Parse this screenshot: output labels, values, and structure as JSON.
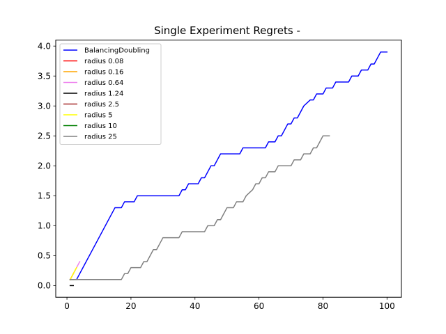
{
  "chart_data": {
    "type": "line",
    "title": "Single Experiment Regrets -",
    "xlabel": "",
    "ylabel": "",
    "xlim": [
      -3.5,
      104.5
    ],
    "ylim": [
      -0.195,
      4.1
    ],
    "xticks": [
      0,
      20,
      40,
      60,
      80,
      100
    ],
    "yticks": [
      0.0,
      0.5,
      1.0,
      1.5,
      2.0,
      2.5,
      3.0,
      3.5,
      4.0
    ],
    "xtick_labels": [
      "0",
      "20",
      "40",
      "60",
      "80",
      "100"
    ],
    "ytick_labels": [
      "0.0",
      "0.5",
      "1.0",
      "1.5",
      "2.0",
      "2.5",
      "3.0",
      "3.5",
      "4.0"
    ],
    "legend_position": "upper-left",
    "grid": false,
    "series": [
      {
        "name": "BalancingDoubling",
        "color": "#0000ff",
        "x": [
          1,
          3,
          15,
          17,
          18,
          21,
          22,
          35,
          36,
          37,
          38,
          40,
          41,
          42,
          43,
          44,
          45,
          46,
          48,
          54,
          55,
          62,
          63,
          65,
          66,
          67,
          68,
          69,
          70,
          71,
          72,
          74,
          76,
          77,
          78,
          79,
          80,
          81,
          82,
          83,
          84,
          88,
          89,
          91,
          92,
          94,
          95,
          96,
          97,
          98,
          99,
          100
        ],
        "y": [
          0.1,
          0.1,
          1.3,
          1.3,
          1.4,
          1.4,
          1.5,
          1.5,
          1.6,
          1.6,
          1.7,
          1.7,
          1.7,
          1.8,
          1.8,
          1.9,
          2.0,
          2.0,
          2.2,
          2.2,
          2.3,
          2.3,
          2.4,
          2.4,
          2.5,
          2.5,
          2.6,
          2.7,
          2.7,
          2.8,
          2.8,
          3.0,
          3.1,
          3.1,
          3.2,
          3.2,
          3.2,
          3.3,
          3.3,
          3.3,
          3.4,
          3.4,
          3.5,
          3.5,
          3.6,
          3.6,
          3.7,
          3.7,
          3.8,
          3.9,
          3.9,
          3.9
        ]
      },
      {
        "name": "radius 0.08",
        "color": "#ff0000",
        "x": [
          1,
          2
        ],
        "y": [
          0.1,
          0.2
        ]
      },
      {
        "name": "radius 0.16",
        "color": "#ffa500",
        "x": [
          1,
          2,
          3
        ],
        "y": [
          0.1,
          0.2,
          0.3
        ]
      },
      {
        "name": "radius 0.64",
        "color": "#ee82ee",
        "x": [
          1,
          2,
          3,
          4
        ],
        "y": [
          0.1,
          0.2,
          0.3,
          0.4
        ]
      },
      {
        "name": "radius 1.24",
        "color": "#000000",
        "x": [
          1,
          2
        ],
        "y": [
          0.0,
          0.0
        ]
      },
      {
        "name": "radius 2.5",
        "color": "#a52a2a",
        "x": [
          1,
          2
        ],
        "y": [
          0.1,
          0.1
        ]
      },
      {
        "name": "radius 5",
        "color": "#ffff00",
        "x": [
          1,
          2,
          3
        ],
        "y": [
          0.1,
          0.2,
          0.3
        ]
      },
      {
        "name": "radius 10",
        "color": "#008000",
        "x": [
          1,
          2,
          3
        ],
        "y": [
          0.1,
          0.1,
          0.1
        ]
      },
      {
        "name": "radius 25",
        "color": "#808080",
        "x": [
          1,
          17,
          18,
          19,
          20,
          22,
          23,
          24,
          25,
          26,
          27,
          28,
          29,
          30,
          35,
          36,
          37,
          43,
          44,
          46,
          47,
          48,
          49,
          50,
          52,
          53,
          55,
          56,
          58,
          59,
          60,
          61,
          62,
          63,
          64,
          65,
          66,
          67,
          70,
          71,
          73,
          74,
          76,
          77,
          78,
          79,
          80,
          81,
          82
        ],
        "y": [
          0.1,
          0.1,
          0.2,
          0.2,
          0.3,
          0.3,
          0.3,
          0.4,
          0.4,
          0.5,
          0.6,
          0.6,
          0.7,
          0.8,
          0.8,
          0.9,
          0.9,
          0.9,
          1.0,
          1.0,
          1.1,
          1.1,
          1.2,
          1.3,
          1.3,
          1.4,
          1.4,
          1.5,
          1.6,
          1.7,
          1.7,
          1.8,
          1.8,
          1.9,
          1.9,
          1.9,
          2.0,
          2.0,
          2.0,
          2.1,
          2.1,
          2.2,
          2.2,
          2.3,
          2.3,
          2.4,
          2.5,
          2.5,
          2.5
        ]
      }
    ]
  }
}
